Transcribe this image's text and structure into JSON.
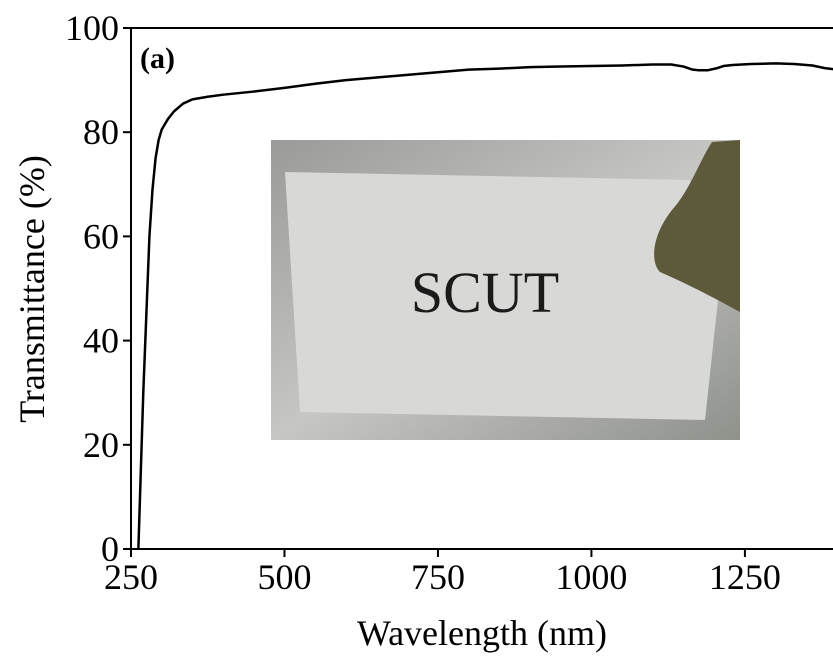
{
  "chart_data": {
    "type": "line",
    "xlabel": "Wavelength (nm)",
    "ylabel": "Transmittance (%)",
    "panel_label": "(a)",
    "inset_label": "SCUT",
    "x": [
      262,
      266,
      270,
      275,
      280,
      285,
      290,
      295,
      300,
      310,
      320,
      335,
      350,
      375,
      400,
      450,
      500,
      550,
      600,
      650,
      700,
      750,
      800,
      850,
      900,
      950,
      1000,
      1050,
      1100,
      1130,
      1150,
      1165,
      1175,
      1190,
      1205,
      1215,
      1230,
      1260,
      1300,
      1330,
      1360,
      1380,
      1400
    ],
    "values": [
      0,
      15,
      30,
      45,
      60,
      69,
      75,
      78.5,
      80.5,
      82.5,
      84,
      85.5,
      86.3,
      86.8,
      87.2,
      87.8,
      88.5,
      89.3,
      90,
      90.5,
      91,
      91.5,
      92,
      92.2,
      92.5,
      92.6,
      92.7,
      92.8,
      93,
      93,
      92.6,
      92,
      91.9,
      91.9,
      92.3,
      92.7,
      92.9,
      93.1,
      93.2,
      93.1,
      92.8,
      92.3,
      92
    ],
    "color": "#000000",
    "xlim": [
      250,
      1400
    ],
    "ylim": [
      0,
      100
    ],
    "xticks": [
      250,
      500,
      750,
      1000,
      1250
    ],
    "yticks": [
      0,
      20,
      40,
      60,
      80,
      100
    ],
    "grid": false
  }
}
